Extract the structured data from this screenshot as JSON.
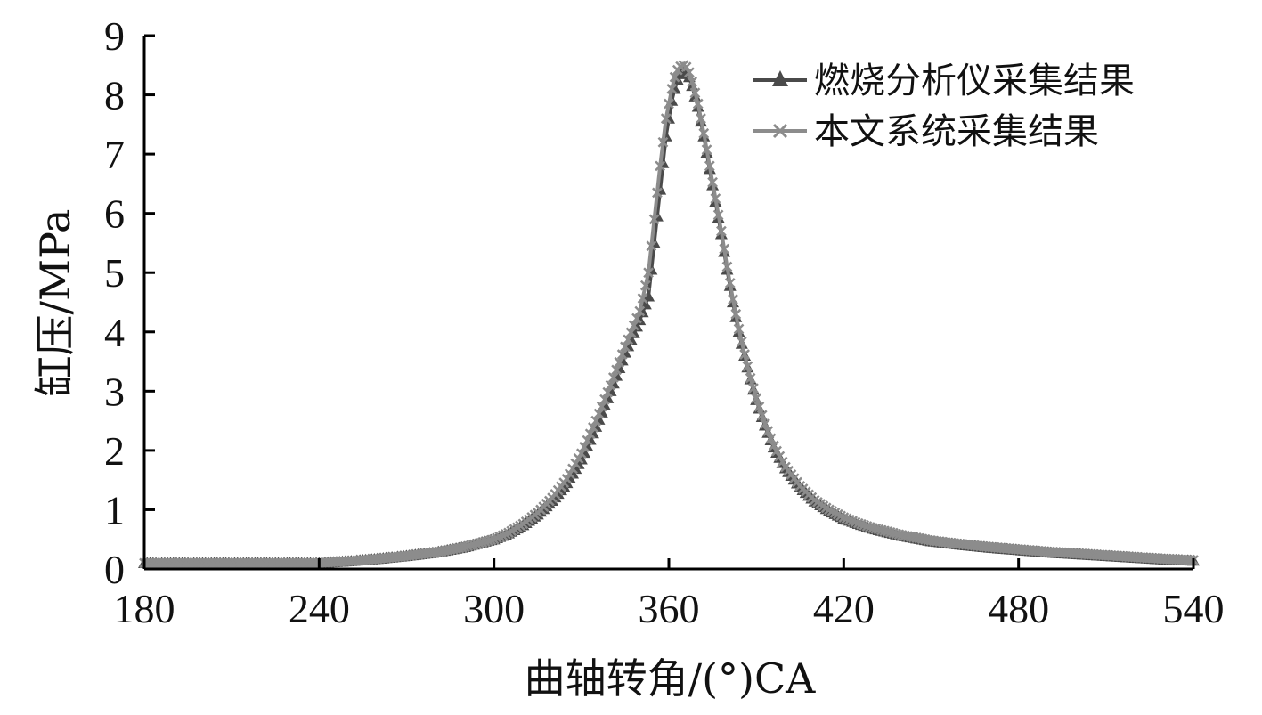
{
  "chart_data": {
    "type": "line",
    "title": "",
    "xlabel": "曲轴转角/(°)CA",
    "ylabel": "缸压/MPa",
    "xlim": [
      180,
      540
    ],
    "ylim": [
      0,
      9
    ],
    "xticks": [
      "180",
      "240",
      "300",
      "360",
      "420",
      "480",
      "540"
    ],
    "yticks": [
      "0",
      "1",
      "2",
      "3",
      "4",
      "5",
      "6",
      "7",
      "8",
      "9"
    ],
    "grid": false,
    "legend_position": "top-right",
    "series": [
      {
        "name": "燃烧分析仪采集结果",
        "marker": "triangle",
        "color": "#4a4a4a",
        "x": [
          180,
          190,
          200,
          210,
          220,
          230,
          240,
          250,
          260,
          270,
          280,
          290,
          300,
          305,
          310,
          315,
          320,
          325,
          330,
          335,
          340,
          345,
          350,
          353,
          355,
          357,
          359,
          361,
          362,
          363,
          364,
          365,
          366,
          367,
          368,
          370,
          372,
          374,
          376,
          378,
          380,
          382,
          384,
          386,
          388,
          390,
          393,
          396,
          400,
          405,
          410,
          415,
          420,
          425,
          430,
          440,
          450,
          460,
          470,
          480,
          490,
          500,
          510,
          520,
          530,
          540
        ],
        "y": [
          0.1,
          0.1,
          0.1,
          0.1,
          0.1,
          0.1,
          0.1,
          0.13,
          0.17,
          0.22,
          0.28,
          0.37,
          0.5,
          0.6,
          0.74,
          0.92,
          1.15,
          1.45,
          1.85,
          2.4,
          3.0,
          3.65,
          4.2,
          4.6,
          5.5,
          6.4,
          7.3,
          7.9,
          8.1,
          8.25,
          8.35,
          8.4,
          8.38,
          8.3,
          8.15,
          7.8,
          7.3,
          6.75,
          6.2,
          5.65,
          5.05,
          4.5,
          4.0,
          3.6,
          3.2,
          2.85,
          2.42,
          2.05,
          1.7,
          1.38,
          1.14,
          0.98,
          0.85,
          0.76,
          0.68,
          0.56,
          0.47,
          0.41,
          0.36,
          0.32,
          0.28,
          0.25,
          0.22,
          0.19,
          0.16,
          0.14
        ]
      },
      {
        "name": "本文系统采集结果",
        "marker": "x",
        "color": "#8c8c8c",
        "x": [
          180,
          190,
          200,
          210,
          220,
          230,
          240,
          250,
          260,
          270,
          280,
          290,
          300,
          305,
          310,
          315,
          320,
          325,
          330,
          335,
          340,
          345,
          350,
          353,
          355,
          357,
          359,
          361,
          362,
          363,
          364,
          365,
          366,
          367,
          368,
          370,
          372,
          374,
          376,
          378,
          380,
          382,
          384,
          386,
          388,
          390,
          393,
          396,
          400,
          405,
          410,
          415,
          420,
          425,
          430,
          440,
          450,
          460,
          470,
          480,
          490,
          500,
          510,
          520,
          530,
          540
        ],
        "y": [
          0.1,
          0.1,
          0.1,
          0.1,
          0.1,
          0.1,
          0.1,
          0.13,
          0.17,
          0.22,
          0.28,
          0.37,
          0.5,
          0.61,
          0.76,
          0.95,
          1.2,
          1.52,
          1.95,
          2.5,
          3.1,
          3.75,
          4.35,
          5.0,
          5.9,
          6.8,
          7.6,
          8.1,
          8.3,
          8.42,
          8.48,
          8.5,
          8.47,
          8.38,
          8.22,
          7.85,
          7.35,
          6.8,
          6.25,
          5.7,
          5.1,
          4.55,
          4.05,
          3.62,
          3.22,
          2.88,
          2.45,
          2.08,
          1.72,
          1.4,
          1.16,
          1.0,
          0.87,
          0.77,
          0.69,
          0.57,
          0.48,
          0.42,
          0.37,
          0.33,
          0.29,
          0.26,
          0.23,
          0.2,
          0.17,
          0.15
        ]
      }
    ]
  }
}
